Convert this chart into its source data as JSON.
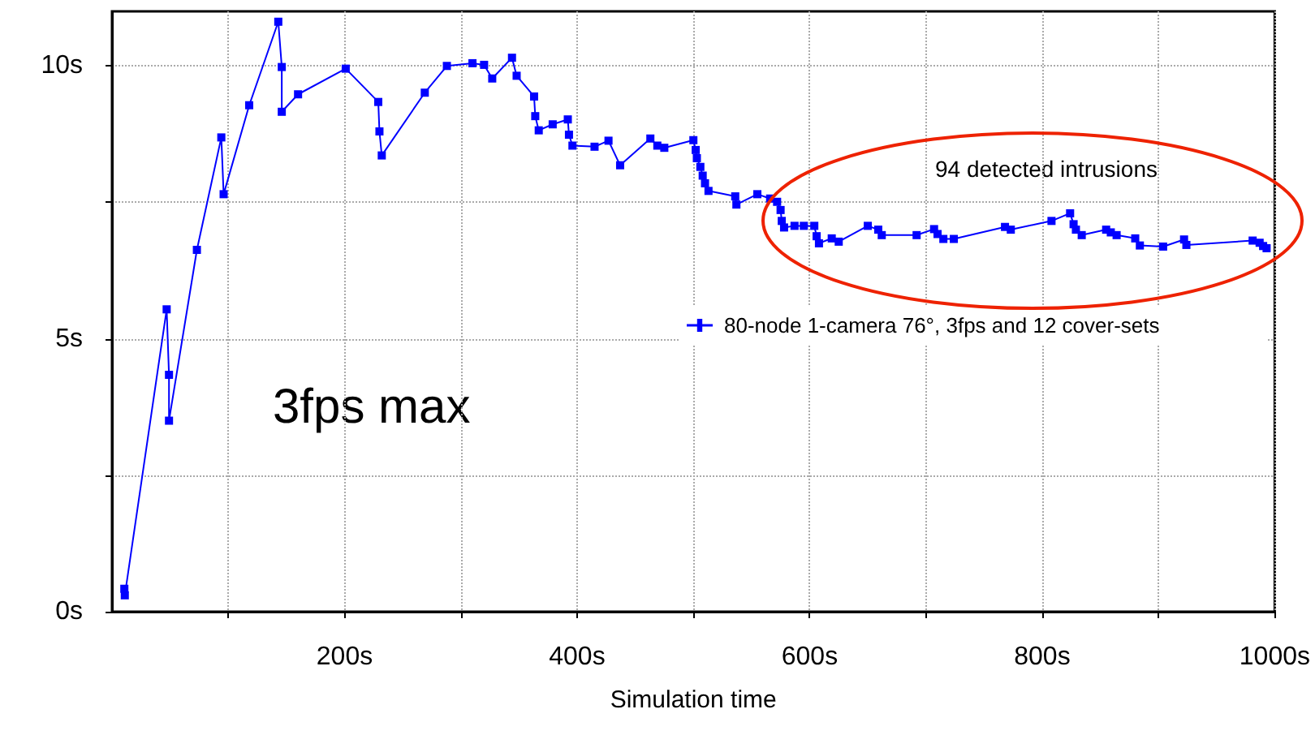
{
  "chart_data": {
    "type": "line",
    "xlabel": "Simulation time",
    "annotations": [
      "94 detected intrusions",
      "3fps max"
    ],
    "series": [
      {
        "name": "80-node 1-camera 76°, 3fps and 12 cover-sets",
        "color": "#0000ff",
        "x": [
          10.6,
          11,
          47,
          49,
          49,
          73,
          94,
          96,
          118,
          143,
          146,
          146,
          160,
          201,
          229,
          230,
          232,
          269,
          288,
          310,
          320,
          327,
          344,
          348,
          363,
          364,
          367,
          379,
          392,
          393,
          396,
          415,
          427,
          437,
          463,
          469,
          475,
          500,
          502,
          503,
          506,
          508,
          510,
          513,
          536,
          537,
          555,
          566,
          572,
          575,
          576,
          578,
          587,
          595,
          604,
          606,
          608,
          619,
          625,
          650,
          659,
          662,
          692,
          707,
          710,
          715,
          724,
          768,
          773,
          808,
          824,
          827,
          829,
          834,
          855,
          859,
          864,
          880,
          884,
          904,
          922,
          924,
          981,
          987,
          990,
          993
        ],
        "values": [
          0.42,
          0.3,
          5.54,
          4.34,
          3.5,
          6.63,
          8.69,
          7.65,
          9.28,
          10.81,
          9.98,
          9.16,
          9.48,
          9.95,
          9.34,
          8.8,
          8.36,
          9.51,
          10.0,
          10.05,
          10.02,
          9.77,
          10.15,
          9.82,
          9.44,
          9.08,
          8.82,
          8.93,
          9.02,
          8.74,
          8.54,
          8.52,
          8.63,
          8.18,
          8.67,
          8.54,
          8.5,
          8.64,
          8.46,
          8.31,
          8.15,
          7.99,
          7.85,
          7.71,
          7.61,
          7.46,
          7.65,
          7.57,
          7.51,
          7.36,
          7.16,
          7.04,
          7.07,
          7.07,
          7.07,
          6.88,
          6.75,
          6.84,
          6.78,
          7.07,
          7.0,
          6.9,
          6.9,
          7.01,
          6.92,
          6.83,
          6.83,
          7.05,
          7.0,
          7.16,
          7.3,
          7.1,
          7.0,
          6.9,
          7.0,
          6.95,
          6.9,
          6.84,
          6.71,
          6.69,
          6.82,
          6.72,
          6.8,
          6.76,
          6.7,
          6.66
        ]
      }
    ],
    "xlim": [
      0,
      1000
    ],
    "xticks": [
      {
        "value": 100,
        "label": null
      },
      {
        "value": 200,
        "label": "200s"
      },
      {
        "value": 300,
        "label": null
      },
      {
        "value": 400,
        "label": "400s"
      },
      {
        "value": 500,
        "label": null
      },
      {
        "value": 600,
        "label": "600s"
      },
      {
        "value": 700,
        "label": null
      },
      {
        "value": 800,
        "label": "800s"
      },
      {
        "value": 900,
        "label": null
      },
      {
        "value": 1000,
        "label": "1000s"
      }
    ],
    "ylim": [
      0,
      11
    ],
    "yticks": [
      {
        "value": 0,
        "label": "0s"
      },
      {
        "value": 2.5,
        "label": null
      },
      {
        "value": 5,
        "label": "5s"
      },
      {
        "value": 7.5,
        "label": null
      },
      {
        "value": 10,
        "label": "10s"
      }
    ],
    "grid": true,
    "legend": "right",
    "marker": "square",
    "line_style": "solid"
  }
}
